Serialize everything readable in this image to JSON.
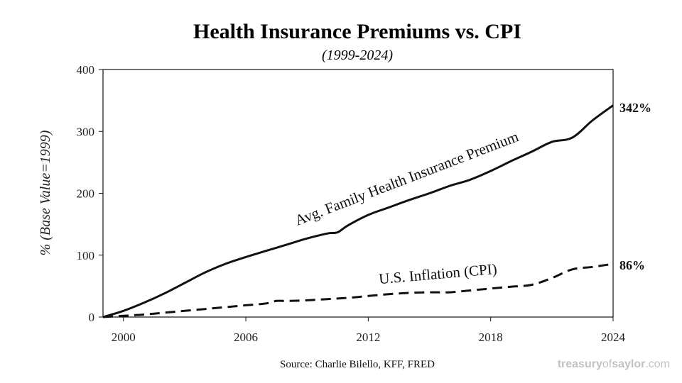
{
  "chart_data": {
    "type": "line",
    "title": "Health Insurance Premiums vs. CPI",
    "subtitle": "(1999-2024)",
    "xlabel": "",
    "ylabel": "% (Base Value=1999)",
    "xlim": [
      1999,
      2024
    ],
    "ylim": [
      0,
      400
    ],
    "xticks": [
      2000,
      2006,
      2012,
      2018,
      2024
    ],
    "yticks": [
      0,
      100,
      200,
      300,
      400
    ],
    "grid": false,
    "series": [
      {
        "name": "Avg. Family Health Insurance Premium",
        "style": "solid",
        "end_label": "342%",
        "x": [
          1999,
          2000,
          2001,
          2002,
          2003,
          2004,
          2005,
          2006,
          2007,
          2008,
          2009,
          2010,
          2010.5,
          2011,
          2012,
          2013,
          2014,
          2015,
          2016,
          2017,
          2018,
          2019,
          2020,
          2021,
          2022,
          2023,
          2024
        ],
        "values": [
          0,
          10,
          23,
          38,
          55,
          72,
          86,
          97,
          107,
          117,
          127,
          135,
          137,
          148,
          165,
          177,
          189,
          200,
          212,
          222,
          236,
          252,
          267,
          283,
          290,
          318,
          342
        ]
      },
      {
        "name": "U.S. Inflation (CPI)",
        "style": "dashed",
        "end_label": "86%",
        "x": [
          1999,
          2000,
          2001,
          2002,
          2003,
          2004,
          2005,
          2006,
          2007,
          2007.5,
          2008,
          2009,
          2010,
          2011,
          2012,
          2013,
          2014,
          2015,
          2016,
          2017,
          2018,
          2019,
          2020,
          2021,
          2022,
          2023,
          2024
        ],
        "values": [
          0,
          2,
          4,
          7,
          10,
          13,
          16,
          19,
          22,
          26,
          26,
          27,
          29,
          31,
          34,
          37,
          39,
          40,
          40,
          43,
          46,
          49,
          52,
          63,
          77,
          81,
          86
        ]
      }
    ]
  },
  "footer": {
    "source": "Source: Charlie Bilello, KFF, FRED",
    "brand_part1": "treasury",
    "brand_part2": "of",
    "brand_part3": "saylor",
    "brand_part4": ".com"
  }
}
